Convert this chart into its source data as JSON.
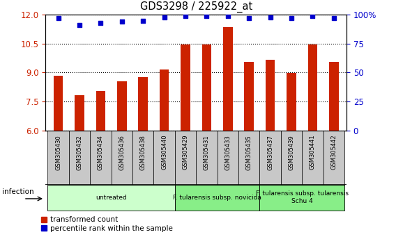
{
  "title": "GDS3298 / 225922_at",
  "samples": [
    "GSM305430",
    "GSM305432",
    "GSM305434",
    "GSM305436",
    "GSM305438",
    "GSM305440",
    "GSM305429",
    "GSM305431",
    "GSM305433",
    "GSM305435",
    "GSM305437",
    "GSM305439",
    "GSM305441",
    "GSM305442"
  ],
  "bar_values": [
    8.85,
    7.82,
    8.05,
    8.55,
    8.75,
    9.15,
    10.47,
    10.47,
    11.35,
    9.55,
    9.65,
    8.97,
    10.47,
    9.55
  ],
  "dot_values": [
    97,
    91,
    93,
    94,
    95,
    98,
    99,
    99,
    99,
    97,
    98,
    97,
    99,
    97
  ],
  "bar_color": "#cc2200",
  "dot_color": "#0000cc",
  "ylim_left": [
    6,
    12
  ],
  "ylim_right": [
    0,
    100
  ],
  "yticks_left": [
    6,
    7.5,
    9,
    10.5,
    12
  ],
  "yticks_right": [
    0,
    25,
    50,
    75,
    100
  ],
  "right_tick_labels": [
    "0",
    "25",
    "50",
    "75",
    "100%"
  ],
  "groups": [
    {
      "label": "untreated",
      "start": 0,
      "end": 6,
      "color": "#ccffcc"
    },
    {
      "label": "F. tularensis subsp. novicida",
      "start": 6,
      "end": 10,
      "color": "#88ee88"
    },
    {
      "label": "F. tularensis subsp. tularensis\nSchu 4",
      "start": 10,
      "end": 14,
      "color": "#88ee88"
    }
  ],
  "infection_label": "infection",
  "legend_bar": "transformed count",
  "legend_dot": "percentile rank within the sample",
  "bar_width": 0.45,
  "sample_box_color": "#c8c8c8",
  "sample_box_edge": "#888888"
}
